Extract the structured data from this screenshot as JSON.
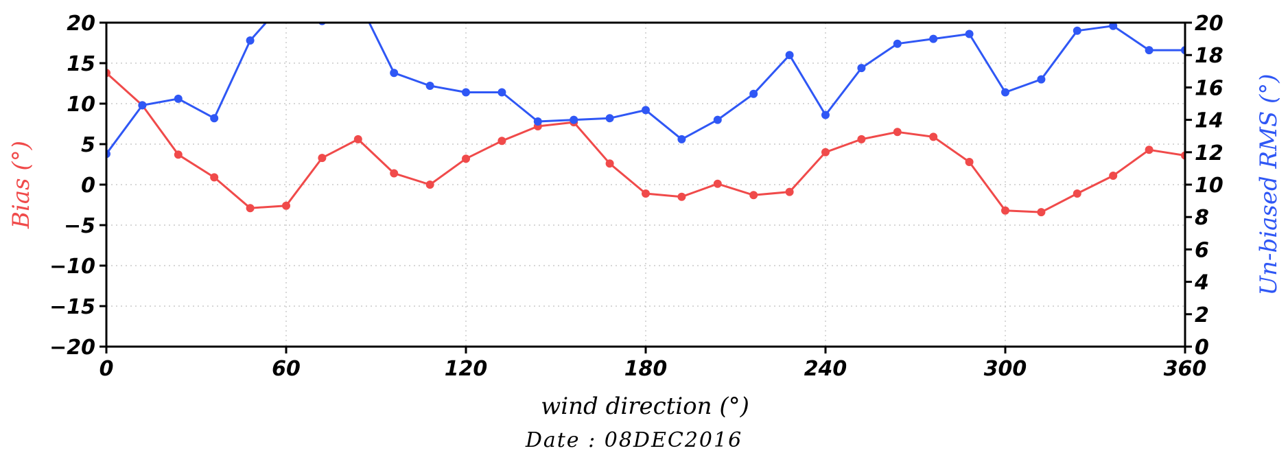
{
  "chart_data": {
    "type": "line",
    "xlabel": "wind direction (°)",
    "ylabel_left": "Bias (°)",
    "ylabel_right": "Un-biased RMS (°)",
    "footer": "Date : 08DEC2016",
    "xlim": [
      0,
      360
    ],
    "ylim_left": [
      -20,
      20
    ],
    "ylim_right": [
      0,
      20
    ],
    "x_ticks": [
      0,
      60,
      120,
      180,
      240,
      300,
      360
    ],
    "y_ticks_left": [
      -20,
      -15,
      -10,
      -5,
      0,
      5,
      10,
      15,
      20
    ],
    "y_ticks_right": [
      0,
      2,
      4,
      6,
      8,
      10,
      12,
      14,
      16,
      18,
      20
    ],
    "grid": "dotted",
    "x": [
      0,
      12,
      24,
      36,
      48,
      60,
      72,
      84,
      96,
      108,
      120,
      132,
      144,
      156,
      168,
      180,
      192,
      204,
      216,
      228,
      240,
      252,
      264,
      276,
      288,
      300,
      312,
      324,
      336,
      348,
      360
    ],
    "series": [
      {
        "axis": "left",
        "color": "#f04a4a",
        "values": [
          13.8,
          9.8,
          3.7,
          0.9,
          -2.9,
          -2.6,
          3.3,
          5.6,
          1.4,
          0.0,
          3.2,
          5.4,
          7.2,
          7.7,
          2.6,
          -1.1,
          -1.5,
          0.1,
          -1.3,
          -0.9,
          4.0,
          5.6,
          6.5,
          5.9,
          2.8,
          -3.2,
          -3.4,
          -1.1,
          1.1,
          4.3,
          3.6
        ]
      },
      {
        "axis": "right",
        "color": "#2f57f5",
        "values": [
          11.9,
          14.9,
          15.3,
          14.1,
          18.9,
          21.4,
          20.1,
          21.4,
          16.9,
          16.1,
          15.7,
          15.7,
          13.9,
          14.0,
          14.1,
          14.6,
          12.8,
          14.0,
          15.6,
          18.0,
          14.3,
          17.2,
          18.7,
          19.0,
          19.3,
          15.7,
          16.5,
          19.5,
          19.8,
          18.3,
          18.3
        ]
      }
    ]
  }
}
